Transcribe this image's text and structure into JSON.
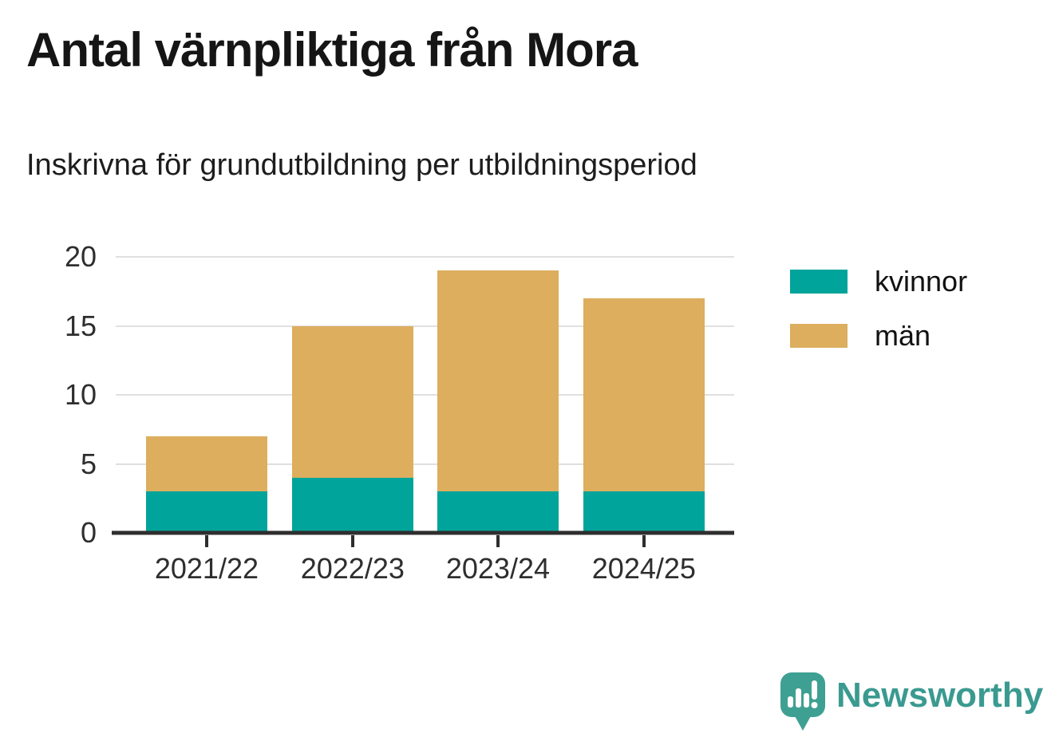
{
  "header": {
    "title": "Antal värnpliktiga från Mora",
    "subtitle": "Inskrivna för grundutbildning per utbildningsperiod"
  },
  "chart_data": {
    "type": "bar",
    "stacked": true,
    "title": "Antal värnpliktiga från Mora",
    "subtitle": "Inskrivna för grundutbildning per utbildningsperiod",
    "categories": [
      "2021/22",
      "2022/23",
      "2023/24",
      "2024/25"
    ],
    "series": [
      {
        "name": "kvinnor",
        "color": "#00a49a",
        "values": [
          3,
          4,
          3,
          3
        ]
      },
      {
        "name": "män",
        "color": "#dcae5e",
        "values": [
          4,
          11,
          16,
          14
        ]
      }
    ],
    "stack_totals": [
      7,
      15,
      19,
      17
    ],
    "xlabel": "",
    "ylabel": "",
    "ylim": [
      0,
      20
    ],
    "yticks": [
      0,
      5,
      10,
      15,
      20
    ],
    "grid": true,
    "legend_position": "right"
  },
  "branding": {
    "logo_icon": "newsworthy-speech-bubble-bar-chart-icon",
    "name": "Newsworthy",
    "color": "#3ea092"
  },
  "colors": {
    "kvinnor": "#00a49a",
    "man": "#dcae5e",
    "axis": "#2e2e2e",
    "gridline": "#e0e0e0",
    "background": "#ffffff",
    "text": "#151515"
  }
}
